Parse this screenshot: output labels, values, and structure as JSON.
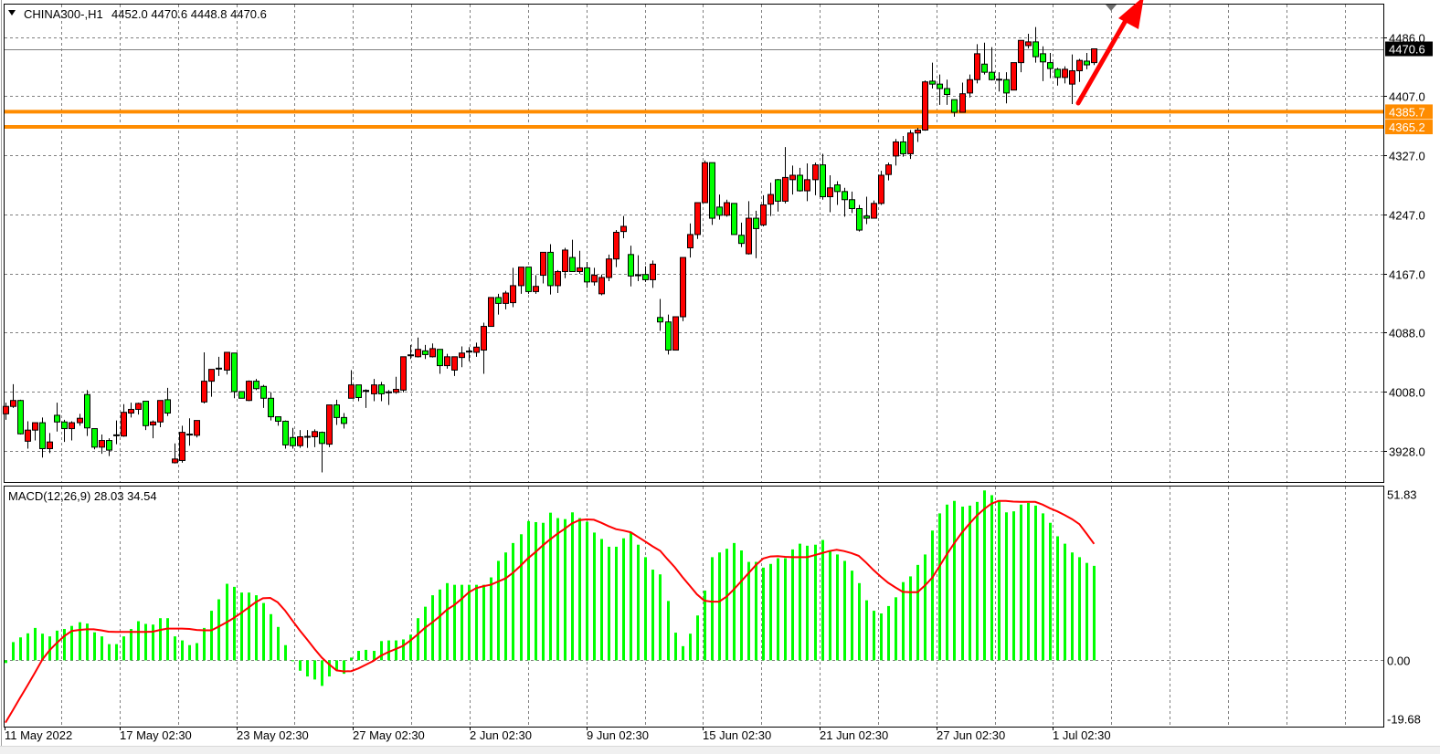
{
  "header": {
    "symbol": "CHINA300-,H1",
    "ohlc_text": "4452.0 4470.6 4448.8 4470.6",
    "menu_icon": "triangle-down-icon"
  },
  "macd_header": "MACD(12,26,9) 28.03 34.54",
  "colors": {
    "up_candle": "#ff0000",
    "down_candle": "#00ff00",
    "histogram": "#00ff00",
    "signal": "#ff0000",
    "support_lines": "#ff8c00",
    "price_line": "#808080",
    "arrow": "#ff0000",
    "grid": "#808080"
  },
  "price_tags": {
    "current": "4470.6",
    "level_1": "4385.7",
    "level_2": "4365.2"
  },
  "chart_data": [
    {
      "type": "candlestick",
      "title": "CHINA300-,H1",
      "ylim": [
        3886,
        4531.6
      ],
      "grid": true,
      "y_ticks": [
        "4486.0",
        "4407.0",
        "4327.0",
        "4247.0",
        "4167.0",
        "4088.0",
        "4008.0",
        "3928.0"
      ],
      "x_tick_labels": [
        "11 May 2022",
        "17 May 02:30",
        "23 May 02:30",
        "27 May 02:30",
        "2 Jun 02:30",
        "9 Jun 02:30",
        "15 Jun 02:30",
        "21 Jun 02:30",
        "27 Jun 02:30",
        "1 Jul 02:30"
      ],
      "horizontal_lines": [
        {
          "price": 4470.6,
          "kind": "current-price"
        },
        {
          "price": 4385.7,
          "kind": "level"
        },
        {
          "price": 4365.2,
          "kind": "level"
        }
      ],
      "annotation": "up-arrow",
      "ohlc": [
        [
          3978,
          3993,
          3970,
          3988
        ],
        [
          3988,
          4018,
          3986,
          3996
        ],
        [
          3996,
          3997,
          3950,
          3951
        ],
        [
          3941,
          3968,
          3931,
          3956
        ],
        [
          3956,
          3966,
          3942,
          3966
        ],
        [
          3966,
          3973,
          3919,
          3931
        ],
        [
          3931,
          3952,
          3925,
          3940
        ],
        [
          3976,
          3993,
          3954,
          3967
        ],
        [
          3967,
          3970,
          3940,
          3958
        ],
        [
          3958,
          3968,
          3942,
          3966
        ],
        [
          3966,
          3978,
          3962,
          3972
        ],
        [
          4004,
          4010,
          3948,
          3959
        ],
        [
          3958,
          3958,
          3930,
          3933
        ],
        [
          3933,
          3950,
          3924,
          3942
        ],
        [
          3942,
          3945,
          3921,
          3929
        ],
        [
          3948,
          3969,
          3937,
          3949
        ],
        [
          3948,
          3991,
          3947,
          3980
        ],
        [
          3979,
          3993,
          3973,
          3984
        ],
        [
          3984,
          3993,
          3977,
          3992
        ],
        [
          3995,
          3995,
          3956,
          3962
        ],
        [
          3963,
          3969,
          3945,
          3967
        ],
        [
          3967,
          3996,
          3960,
          3996
        ],
        [
          3997,
          4013,
          3975,
          3979
        ],
        [
          3912,
          3938,
          3911,
          3917
        ],
        [
          3915,
          3962,
          3912,
          3953
        ],
        [
          3950,
          3972,
          3935,
          3950
        ],
        [
          3949,
          3969,
          3946,
          3969
        ],
        [
          3994,
          4061,
          3992,
          4022
        ],
        [
          4022,
          4038,
          4001,
          4038
        ],
        [
          4038,
          4055,
          4029,
          4039
        ],
        [
          4037,
          4061,
          4031,
          4061
        ],
        [
          4060,
          4060,
          3999,
          4008
        ],
        [
          4008,
          4008,
          3999,
          3999
        ],
        [
          3996,
          4023,
          3995,
          4022
        ],
        [
          4022,
          4025,
          4010,
          4012
        ],
        [
          4015,
          4017,
          3986,
          3999
        ],
        [
          3999,
          4007,
          3969,
          3974
        ],
        [
          3974,
          3974,
          3962,
          3968
        ],
        [
          3968,
          3969,
          3931,
          3936
        ],
        [
          3946,
          3959,
          3931,
          3935
        ],
        [
          3935,
          3956,
          3932,
          3947
        ],
        [
          3947,
          3956,
          3932,
          3947
        ],
        [
          3947,
          3957,
          3933,
          3954
        ],
        [
          3953,
          3954,
          3899,
          3938
        ],
        [
          3937,
          3990,
          3933,
          3990
        ],
        [
          3990,
          3997,
          3963,
          3973
        ],
        [
          3973,
          3979,
          3958,
          3965
        ],
        [
          3999,
          4037,
          3999,
          4017
        ],
        [
          4017,
          4017,
          3995,
          4000
        ],
        [
          4008,
          4011,
          3986,
          4009
        ],
        [
          4005,
          4025,
          3995,
          4017
        ],
        [
          4017,
          4021,
          3995,
          4005
        ],
        [
          4006,
          4010,
          3990,
          4007
        ],
        [
          4007,
          4028,
          4005,
          4011
        ],
        [
          4010,
          4055,
          4007,
          4055
        ],
        [
          4056,
          4071,
          4052,
          4057
        ],
        [
          4055,
          4081,
          4054,
          4065
        ],
        [
          4063,
          4071,
          4052,
          4058
        ],
        [
          4055,
          4073,
          4054,
          4066
        ],
        [
          4065,
          4065,
          4032,
          4043
        ],
        [
          4043,
          4059,
          4039,
          4055
        ],
        [
          4037,
          4055,
          4029,
          4055
        ],
        [
          4054,
          4069,
          4041,
          4060
        ],
        [
          4061,
          4068,
          4049,
          4062
        ],
        [
          4061,
          4074,
          4055,
          4068
        ],
        [
          4064,
          4101,
          4032,
          4096
        ],
        [
          4096,
          4135,
          4096,
          4135
        ],
        [
          4135,
          4140,
          4112,
          4127
        ],
        [
          4127,
          4144,
          4119,
          4141
        ],
        [
          4128,
          4175,
          4122,
          4151
        ],
        [
          4151,
          4176,
          4140,
          4176
        ],
        [
          4176,
          4176,
          4140,
          4143
        ],
        [
          4143,
          4165,
          4140,
          4150
        ],
        [
          4165,
          4196,
          4154,
          4196
        ],
        [
          4196,
          4207,
          4139,
          4151
        ],
        [
          4151,
          4172,
          4141,
          4170
        ],
        [
          4170,
          4202,
          4161,
          4199
        ],
        [
          4189,
          4213,
          4170,
          4170
        ],
        [
          4170,
          4198,
          4167,
          4175
        ],
        [
          4175,
          4183,
          4148,
          4156
        ],
        [
          4156,
          4175,
          4151,
          4165
        ],
        [
          4140,
          4166,
          4138,
          4162
        ],
        [
          4162,
          4193,
          4157,
          4187
        ],
        [
          4187,
          4226,
          4176,
          4223
        ],
        [
          4224,
          4245,
          4215,
          4231
        ],
        [
          4193,
          4205,
          4150,
          4164
        ],
        [
          4164,
          4192,
          4157,
          4165
        ],
        [
          4166,
          4177,
          4156,
          4159
        ],
        [
          4159,
          4185,
          4148,
          4180
        ],
        [
          4108,
          4133,
          4090,
          4102
        ],
        [
          4102,
          4112,
          4058,
          4064
        ],
        [
          4064,
          4109,
          4064,
          4109
        ],
        [
          4109,
          4189,
          4103,
          4189
        ],
        [
          4202,
          4235,
          4189,
          4220
        ],
        [
          4220,
          4263,
          4214,
          4263
        ],
        [
          4263,
          4320,
          4263,
          4317
        ],
        [
          4317,
          4317,
          4233,
          4242
        ],
        [
          4257,
          4274,
          4240,
          4246
        ],
        [
          4246,
          4267,
          4244,
          4263
        ],
        [
          4262,
          4262,
          4220,
          4220
        ],
        [
          4219,
          4236,
          4203,
          4208
        ],
        [
          4194,
          4265,
          4193,
          4242
        ],
        [
          4242,
          4252,
          4188,
          4228
        ],
        [
          4233,
          4273,
          4231,
          4260
        ],
        [
          4261,
          4290,
          4245,
          4274
        ],
        [
          4294,
          4295,
          4251,
          4265
        ],
        [
          4265,
          4338,
          4262,
          4297
        ],
        [
          4294,
          4313,
          4274,
          4300
        ],
        [
          4300,
          4310,
          4278,
          4279
        ],
        [
          4279,
          4316,
          4265,
          4294
        ],
        [
          4294,
          4317,
          4273,
          4314
        ],
        [
          4314,
          4329,
          4267,
          4271
        ],
        [
          4271,
          4300,
          4250,
          4283
        ],
        [
          4287,
          4292,
          4260,
          4278
        ],
        [
          4278,
          4283,
          4244,
          4267
        ],
        [
          4267,
          4278,
          4249,
          4255
        ],
        [
          4255,
          4260,
          4224,
          4226
        ],
        [
          4245,
          4271,
          4234,
          4242
        ],
        [
          4242,
          4266,
          4242,
          4262
        ],
        [
          4262,
          4306,
          4260,
          4300
        ],
        [
          4301,
          4317,
          4293,
          4314
        ],
        [
          4326,
          4349,
          4313,
          4345
        ],
        [
          4345,
          4353,
          4325,
          4329
        ],
        [
          4329,
          4361,
          4322,
          4357
        ],
        [
          4357,
          4364,
          4345,
          4361
        ],
        [
          4361,
          4428,
          4360,
          4426
        ],
        [
          4427,
          4452,
          4417,
          4423
        ],
        [
          4423,
          4436,
          4395,
          4417
        ],
        [
          4417,
          4429,
          4395,
          4409
        ],
        [
          4402,
          4402,
          4379,
          4385
        ],
        [
          4385,
          4425,
          4385,
          4410
        ],
        [
          4411,
          4436,
          4405,
          4429
        ],
        [
          4429,
          4477,
          4424,
          4464
        ],
        [
          4450,
          4479,
          4436,
          4439
        ],
        [
          4439,
          4473,
          4428,
          4429
        ],
        [
          4429,
          4439,
          4413,
          4428
        ],
        [
          4429,
          4439,
          4397,
          4411
        ],
        [
          4415,
          4452,
          4415,
          4452
        ],
        [
          4452,
          4482,
          4439,
          4482
        ],
        [
          4475,
          4491,
          4471,
          4480
        ],
        [
          4480,
          4500,
          4452,
          4460
        ],
        [
          4464,
          4474,
          4427,
          4453
        ],
        [
          4452,
          4465,
          4431,
          4444
        ],
        [
          4443,
          4445,
          4421,
          4432
        ],
        [
          4432,
          4447,
          4424,
          4443
        ],
        [
          4423,
          4463,
          4396,
          4441
        ],
        [
          4441,
          4457,
          4426,
          4455
        ],
        [
          4454,
          4465,
          4443,
          4449
        ],
        [
          4452.0,
          4470.6,
          4448.8,
          4470.6
        ]
      ]
    },
    {
      "type": "bar+line",
      "title": "MACD(12,26,9) 28.03 34.54",
      "ylim": [
        -19.68,
        51.83
      ],
      "y_ticks": [
        "51.83",
        "0.00",
        "-19.68"
      ],
      "series": [
        {
          "name": "MACD",
          "type": "bar",
          "values": [
            -0.8,
            5.4,
            6.8,
            8.0,
            9.6,
            7.9,
            7.1,
            8.8,
            9.3,
            10.2,
            11.3,
            10.9,
            8.3,
            7.1,
            4.8,
            4.8,
            7.1,
            9.3,
            11.6,
            10.8,
            10.6,
            12.5,
            12.5,
            7.1,
            5.9,
            4.5,
            5.1,
            9.6,
            14.7,
            18.1,
            22.7,
            21.8,
            20.1,
            20.1,
            19.3,
            17.0,
            13.7,
            9.9,
            4.5,
            0.0,
            -3.1,
            -4.8,
            -5.7,
            -7.6,
            -4.8,
            -2.8,
            -4.0,
            0.8,
            2.8,
            3.1,
            2.8,
            5.7,
            5.9,
            5.9,
            6.2,
            7.6,
            12.5,
            15.9,
            19.3,
            21.0,
            22.9,
            22.4,
            22.4,
            22.4,
            22.4,
            22.4,
            24.6,
            29.5,
            32.0,
            34.8,
            37.4,
            41.3,
            41.0,
            40.8,
            43.8,
            42.2,
            41.9,
            43.9,
            42.2,
            41.1,
            37.9,
            36.0,
            33.7,
            33.7,
            36.2,
            37.9,
            34.3,
            30.6,
            26.9,
            25.5,
            17.6,
            8.2,
            4.2,
            7.9,
            13.3,
            20.7,
            30.6,
            32.0,
            33.1,
            34.8,
            32.6,
            29.2,
            29.2,
            27.5,
            28.6,
            30.3,
            30.3,
            32.9,
            34.6,
            34.0,
            34.3,
            35.7,
            32.6,
            31.4,
            29.5,
            26.6,
            22.9,
            17.8,
            14.7,
            13.9,
            16.1,
            18.7,
            23.2,
            24.9,
            28.3,
            31.4,
            38.5,
            43.6,
            46.2,
            47.3,
            45.6,
            45.9,
            47.0,
            50.4,
            49.0,
            47.3,
            43.9,
            44.2,
            46.2,
            46.7,
            45.9,
            43.6,
            40.8,
            36.8,
            34.6,
            32.0,
            30.6,
            28.9,
            28.03
          ]
        },
        {
          "name": "Signal",
          "type": "line",
          "values": [
            -18.5,
            -14.8,
            -11.1,
            -7.4,
            -3.7,
            0.2,
            3.0,
            5.2,
            7.2,
            8.7,
            9.0,
            9.2,
            9.2,
            8.9,
            8.5,
            8.4,
            8.4,
            8.4,
            8.4,
            8.4,
            8.5,
            9.0,
            9.4,
            9.4,
            9.4,
            9.3,
            9.0,
            8.9,
            8.9,
            10.0,
            11.2,
            12.5,
            14.0,
            15.6,
            17.2,
            18.4,
            18.5,
            17.2,
            14.8,
            11.8,
            8.9,
            6.2,
            3.4,
            0.8,
            -1.2,
            -3.0,
            -3.3,
            -3.2,
            -2.4,
            -1.3,
            -0.2,
            1.3,
            2.4,
            3.3,
            4.2,
            5.8,
            7.6,
            9.6,
            11.2,
            13.0,
            15.0,
            16.4,
            18.2,
            20.2,
            21.4,
            22.0,
            22.4,
            23.4,
            24.3,
            26.0,
            28.0,
            30.2,
            32.0,
            34.0,
            35.8,
            37.5,
            39.0,
            40.6,
            41.6,
            41.8,
            41.7,
            40.8,
            39.8,
            38.9,
            38.5,
            38.0,
            36.6,
            35.2,
            33.8,
            32.5,
            30.0,
            27.6,
            24.8,
            22.2,
            19.6,
            17.7,
            17.4,
            17.4,
            18.8,
            21.0,
            23.4,
            25.8,
            28.2,
            30.2,
            30.8,
            30.9,
            30.7,
            30.6,
            30.6,
            30.6,
            31.2,
            31.8,
            32.4,
            32.8,
            32.4,
            31.8,
            31.0,
            29.0,
            26.8,
            24.8,
            23.0,
            21.6,
            20.3,
            20.2,
            20.2,
            22.2,
            24.5,
            28.0,
            31.5,
            34.8,
            37.8,
            40.4,
            42.8,
            44.8,
            46.4,
            47.3,
            47.3,
            47.1,
            47.0,
            47.0,
            47.0,
            46.2,
            45.1,
            44.2,
            43.1,
            41.9,
            40.4,
            37.5,
            34.54
          ]
        }
      ]
    }
  ]
}
